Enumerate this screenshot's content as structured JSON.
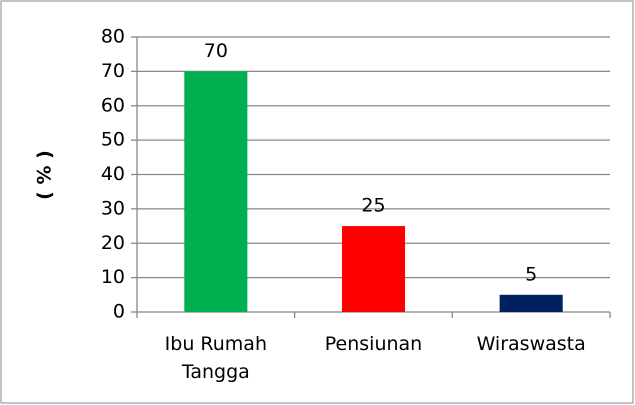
{
  "chart_data": {
    "type": "bar",
    "y_label": "( % )",
    "categories": [
      "Ibu Rumah Tangga",
      "Pensiunan",
      "Wiraswasta"
    ],
    "values": [
      70,
      25,
      5
    ],
    "colors": [
      "#00b050",
      "#ff0000",
      "#002060"
    ],
    "ylim": [
      0,
      80
    ],
    "yticks": [
      0,
      10,
      20,
      30,
      40,
      50,
      60,
      70,
      80
    ],
    "grid": true
  }
}
